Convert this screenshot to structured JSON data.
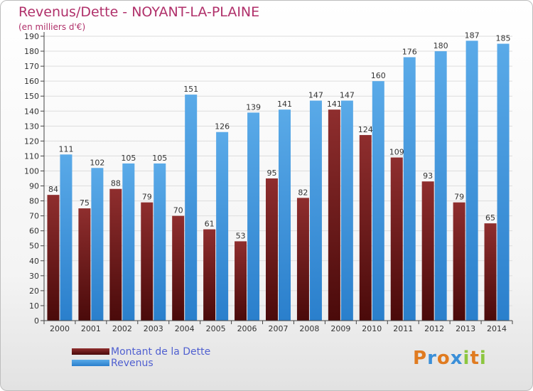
{
  "title": "Revenus/Dette - NOYANT-LA-PLAINE",
  "subtitle": "(en milliers d'€)",
  "logo": {
    "text": "Proxiti",
    "letters": [
      {
        "char": "P",
        "color": "#e07b20"
      },
      {
        "char": "r",
        "color": "#3a8fd8"
      },
      {
        "char": "o",
        "color": "#e07b20"
      },
      {
        "char": "x",
        "color": "#3a8fd8"
      },
      {
        "char": "i",
        "color": "#8cc63f"
      },
      {
        "char": "t",
        "color": "#e07b20"
      },
      {
        "char": "i",
        "color": "#8cc63f"
      }
    ]
  },
  "colors": {
    "dette_light": "#8f2e2e",
    "dette_dark": "#4a0a0a",
    "revenus_light": "#5aaae8",
    "revenus_dark": "#2a7fcc",
    "grid": "#dddddd",
    "axis": "#444444"
  },
  "chart_data": {
    "type": "bar",
    "categories": [
      "2000",
      "2001",
      "2002",
      "2003",
      "2004",
      "2005",
      "2006",
      "2007",
      "2008",
      "2009",
      "2010",
      "2011",
      "2012",
      "2013",
      "2014"
    ],
    "series": [
      {
        "name": "Montant de la Dette",
        "values": [
          84,
          75,
          88,
          79,
          70,
          61,
          53,
          95,
          82,
          141,
          124,
          109,
          93,
          79,
          65
        ]
      },
      {
        "name": "Revenus",
        "values": [
          111,
          102,
          105,
          105,
          151,
          126,
          139,
          141,
          147,
          147,
          160,
          176,
          180,
          187,
          185
        ]
      }
    ],
    "ylim": [
      0,
      190
    ],
    "ytick_step": 10,
    "grid": true,
    "legend": "bottom-left"
  }
}
